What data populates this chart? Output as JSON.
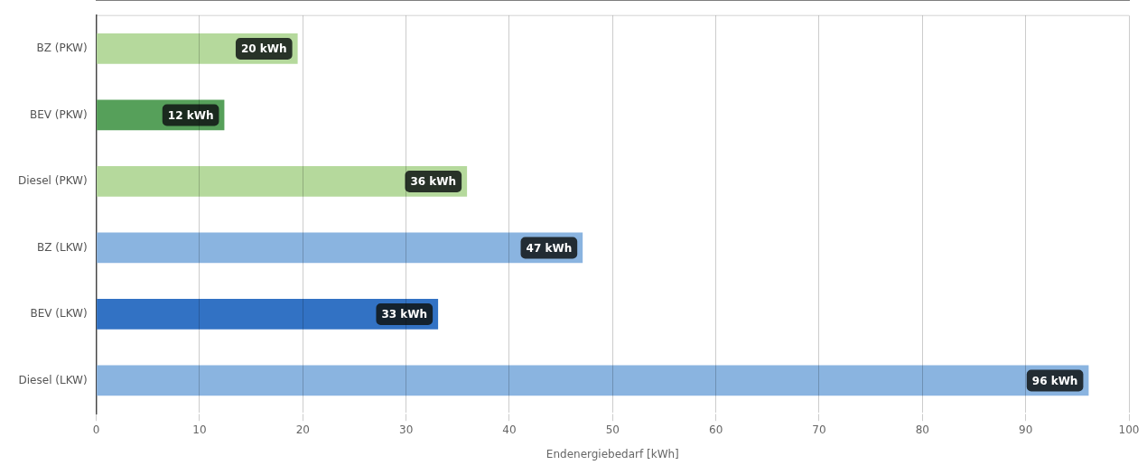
{
  "chart_data": {
    "type": "bar",
    "orientation": "horizontal",
    "xlabel": "Endenergiebedarf [kWh]",
    "categories": [
      "BZ (PKW)",
      "BEV (PKW)",
      "Diesel (PKW)",
      "BZ (LKW)",
      "BEV (LKW)",
      "Diesel (LKW)"
    ],
    "values": [
      19.5,
      12.4,
      35.9,
      47.1,
      33.1,
      96.1
    ],
    "value_labels": [
      "20 kWh",
      "12 kWh",
      "36 kWh",
      "47 kWh",
      "33 kWh",
      "96 kWh"
    ],
    "colors": [
      "#b5d99c",
      "#56a05a",
      "#b5d99c",
      "#8ab4e0",
      "#3272c4",
      "#8ab4e0"
    ],
    "xlim": [
      0,
      100
    ],
    "xticks": [
      0,
      10,
      20,
      30,
      40,
      50,
      60,
      70,
      80,
      90,
      100
    ],
    "grid": "x",
    "legend": false
  }
}
